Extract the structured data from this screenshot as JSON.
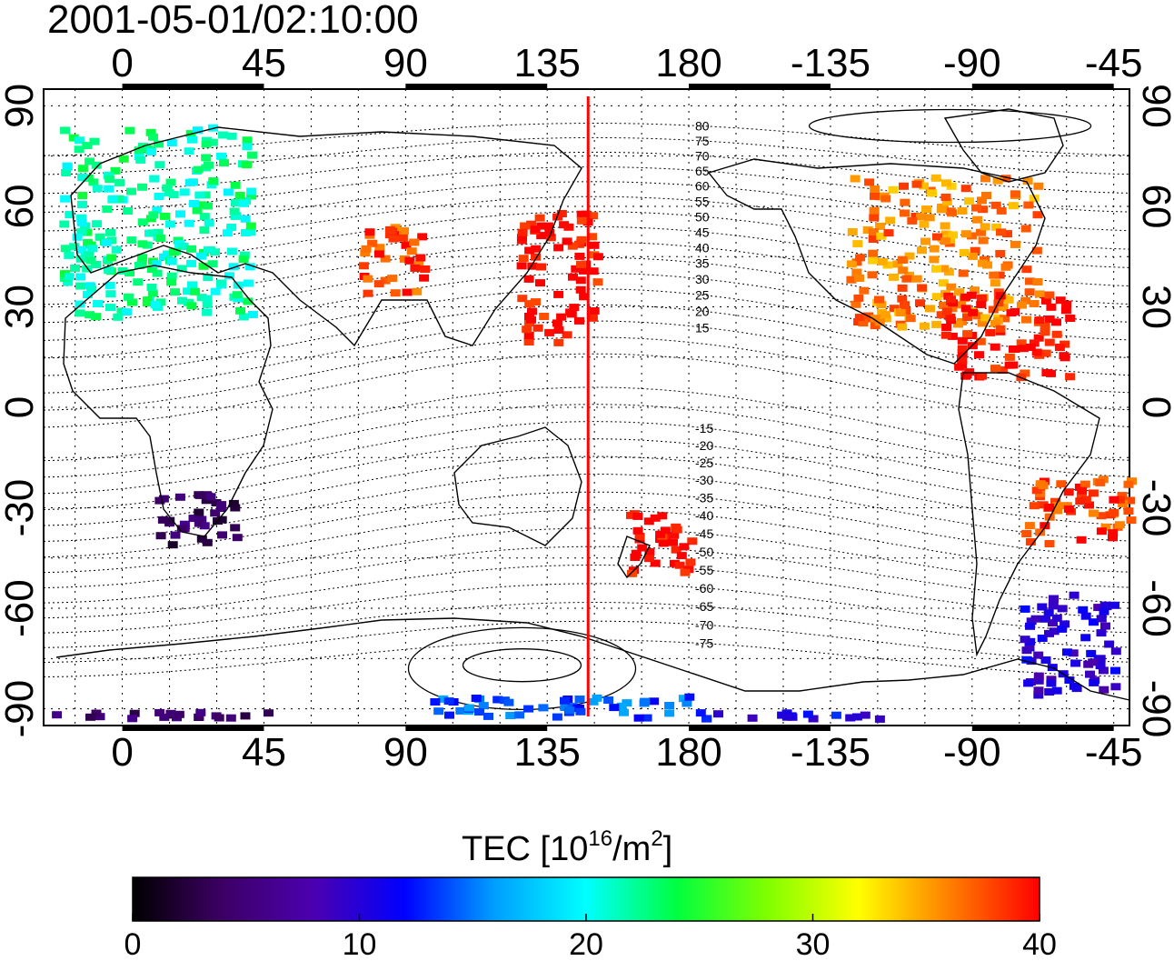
{
  "title": "2001-05-01/02:10:00",
  "map": {
    "top_lon_ticks": [
      "0",
      "45",
      "90",
      "135",
      "180",
      "-135",
      "-90",
      "-45"
    ],
    "bottom_lon_ticks": [
      "0",
      "45",
      "90",
      "135",
      "180",
      "-135",
      "-90",
      "-45"
    ],
    "left_lat_ticks": [
      "90",
      "60",
      "30",
      "0",
      "-30",
      "-60",
      "-90"
    ],
    "right_lat_ticks": [
      "90",
      "60",
      "30",
      "0",
      "-30",
      "-60",
      "-90"
    ],
    "lon_range": [
      -25,
      320
    ],
    "lat_range": [
      -95,
      95
    ],
    "grid": "dotted",
    "meridian_marker_lon": 148,
    "meridian_marker_color": "#ff0000",
    "contour_labels": [
      "80",
      "75",
      "70",
      "65",
      "60",
      "55",
      "50",
      "45",
      "40",
      "35",
      "30",
      "25",
      "20",
      "15",
      "-15",
      "-20",
      "-25",
      "-30",
      "-35",
      "-40",
      "-45",
      "-50",
      "-55",
      "-60",
      "-65",
      "-70",
      "-75"
    ]
  },
  "colorbar": {
    "label_main": "TEC  [10",
    "label_sup": "16",
    "label_mid": "/m",
    "label_sup2": "2",
    "label_end": "]",
    "ticks": [
      "0",
      "10",
      "20",
      "30",
      "40"
    ],
    "range": [
      0,
      40
    ],
    "colormap": [
      "#000000",
      "#3d0066",
      "#4b00b0",
      "#0000ff",
      "#00a0ff",
      "#00ffff",
      "#00ff40",
      "#80ff00",
      "#ffff00",
      "#ff8000",
      "#ff0000"
    ]
  },
  "chart_data": {
    "type": "heatmap",
    "title": "2001-05-01/02:10:00",
    "xlabel": "",
    "ylabel": "",
    "colorbar_label": "TEC [10^16/m^2]",
    "xlim": [
      -25,
      320
    ],
    "ylim": [
      -95,
      95
    ],
    "regions": [
      {
        "lon": [
          -20,
          40
        ],
        "lat": [
          28,
          85
        ],
        "tec": 22
      },
      {
        "lon": [
          75,
          95
        ],
        "lat": [
          35,
          55
        ],
        "tec": 38
      },
      {
        "lon": [
          125,
          150
        ],
        "lat": [
          20,
          60
        ],
        "tec": 40
      },
      {
        "lon": [
          -130,
          -70
        ],
        "lat": [
          25,
          70
        ],
        "tec": 36
      },
      {
        "lon": [
          -100,
          -60
        ],
        "lat": [
          10,
          35
        ],
        "tec": 40
      },
      {
        "lon": [
          10,
          35
        ],
        "lat": [
          -40,
          -25
        ],
        "tec": 4
      },
      {
        "lon": [
          160,
          180
        ],
        "lat": [
          -50,
          -30
        ],
        "tec": 40
      },
      {
        "lon": [
          -75,
          -40
        ],
        "lat": [
          -40,
          -20
        ],
        "tec": 38
      },
      {
        "lon": [
          -75,
          -45
        ],
        "lat": [
          -85,
          -55
        ],
        "tec": 10
      },
      {
        "lon": [
          -25,
          60
        ],
        "lat": [
          -92,
          -90
        ],
        "tec": 4
      },
      {
        "lon": [
          95,
          180
        ],
        "lat": [
          -92,
          -85
        ],
        "tec": 14
      },
      {
        "lon": [
          180,
          240
        ],
        "lat": [
          -92,
          -90
        ],
        "tec": 11
      }
    ]
  }
}
